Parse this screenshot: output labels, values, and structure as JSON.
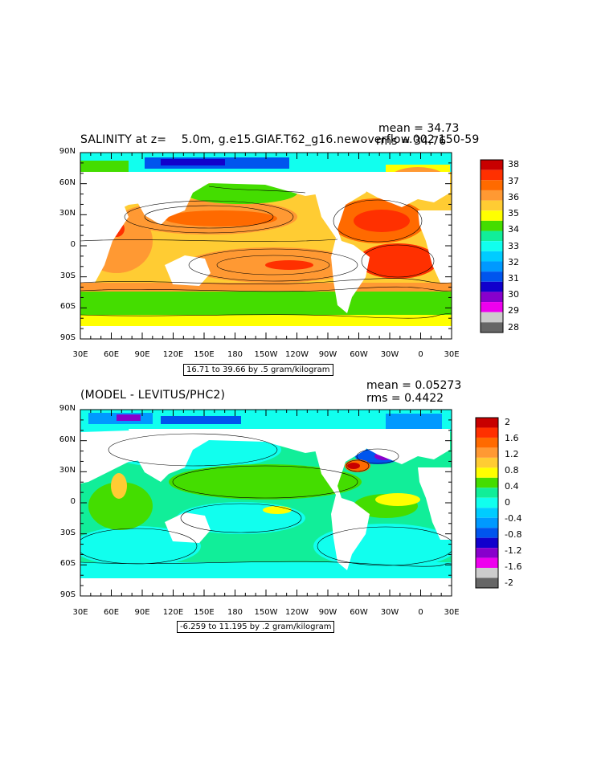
{
  "panels": [
    {
      "title": "SALINITY at z=    5.0m, g.e15.GIAF.T62_g16.newoverflow.002 150-59",
      "mean_label": "mean = 34.73",
      "rms_label": "rms = 34.76",
      "range_label": "16.71 to 39.66 by .5 gram/kilogram",
      "colorbar_labels": [
        "38",
        "37",
        "36",
        "35",
        "34",
        "33",
        "32",
        "31",
        "30",
        "29",
        "28"
      ],
      "colorbar_colors": [
        "#c80000",
        "#ff3000",
        "#ff6a00",
        "#ff9933",
        "#ffcc33",
        "#ffff00",
        "#44dd00",
        "#11ee99",
        "#11ffee",
        "#00ccff",
        "#0099ff",
        "#0055ee",
        "#1100cc",
        "#8800cc",
        "#ee00ee",
        "#cccccc",
        "#666666"
      ]
    },
    {
      "title": "(MODEL - LEVITUS/PHC2)",
      "mean_label": "mean = 0.05273",
      "rms_label": "rms = 0.4422",
      "range_label": "-6.259 to 11.195 by .2 gram/kilogram",
      "colorbar_labels": [
        "2",
        "1.6",
        "1.2",
        "0.8",
        "0.4",
        "0",
        "-0.4",
        "-0.8",
        "-1.2",
        "-1.6",
        "-2"
      ],
      "colorbar_colors": [
        "#c80000",
        "#ff3000",
        "#ff6a00",
        "#ff9933",
        "#ffcc33",
        "#ffff00",
        "#44dd00",
        "#11ee99",
        "#11ffee",
        "#00ccff",
        "#0099ff",
        "#0055ee",
        "#1100cc",
        "#8800cc",
        "#ee00ee",
        "#cccccc",
        "#666666"
      ]
    }
  ],
  "axes": {
    "x_ticks": [
      "30E",
      "60E",
      "90E",
      "120E",
      "150E",
      "180",
      "150W",
      "120W",
      "90W",
      "60W",
      "30W",
      "0",
      "30E"
    ],
    "y_ticks": [
      "90N",
      "60N",
      "30N",
      "0",
      "30S",
      "60S",
      "90S"
    ]
  }
}
